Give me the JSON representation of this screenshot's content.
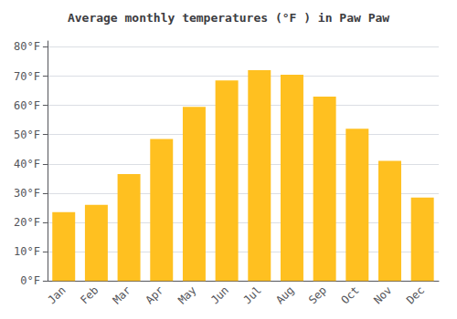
{
  "chart_data": {
    "type": "bar",
    "title": "Average monthly temperatures (°F ) in Paw Paw",
    "categories": [
      "Jan",
      "Feb",
      "Mar",
      "Apr",
      "May",
      "Jun",
      "Jul",
      "Aug",
      "Sep",
      "Oct",
      "Nov",
      "Dec"
    ],
    "values": [
      23.5,
      26.0,
      36.5,
      48.5,
      59.5,
      68.5,
      72.0,
      70.5,
      63.0,
      52.0,
      41.0,
      28.5
    ],
    "color": "#FFC020",
    "ylim": [
      0,
      82
    ],
    "yticks": [
      {
        "value": 0,
        "label": "0°F"
      },
      {
        "value": 10,
        "label": "10°F"
      },
      {
        "value": 20,
        "label": "20°F"
      },
      {
        "value": 30,
        "label": "30°F"
      },
      {
        "value": 40,
        "label": "40°F"
      },
      {
        "value": 50,
        "label": "50°F"
      },
      {
        "value": 60,
        "label": "60°F"
      },
      {
        "value": 70,
        "label": "70°F"
      },
      {
        "value": 80,
        "label": "80°F"
      }
    ],
    "grid": true
  }
}
